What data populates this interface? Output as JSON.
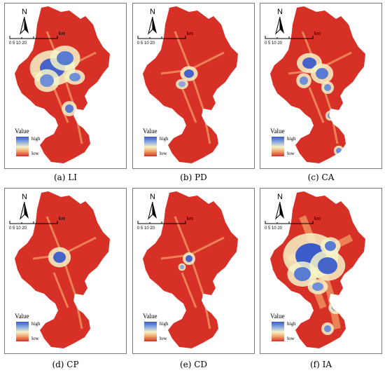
{
  "north_label": "N",
  "scale": {
    "unit": "km",
    "ticks": "0  5  10     20"
  },
  "legend": {
    "title": "Value",
    "high": "high",
    "low": "low"
  },
  "colors": {
    "low": "#d73027",
    "mid": "#f6f3c8",
    "high": "#3b5bc8"
  },
  "panels": [
    {
      "caption": "(a) LI"
    },
    {
      "caption": "(b) PD"
    },
    {
      "caption": "(c) CA"
    },
    {
      "caption": "(d) CP"
    },
    {
      "caption": "(e) CD"
    },
    {
      "caption": "(f) IA"
    }
  ]
}
